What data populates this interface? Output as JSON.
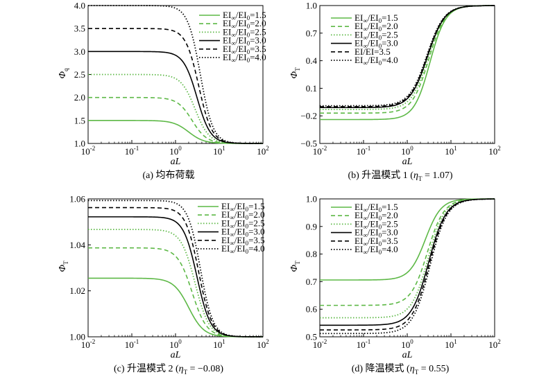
{
  "style": {
    "green": "#5cb845",
    "black": "#000000"
  },
  "legend_entries": [
    {
      "ratio": "1.5",
      "color": "green",
      "dash": "solid"
    },
    {
      "ratio": "2.0",
      "color": "green",
      "dash": "dashed"
    },
    {
      "ratio": "2.5",
      "color": "green",
      "dash": "dotted"
    },
    {
      "ratio": "3.0",
      "color": "black",
      "dash": "solid"
    },
    {
      "ratio": "3.5",
      "color": "black",
      "dash": "dashed"
    },
    {
      "ratio": "4.0",
      "color": "black",
      "dash": "dotted"
    }
  ],
  "chart_data": [
    {
      "id": "a",
      "type": "line",
      "caption": "(a) 均布荷载",
      "caption_eta": "",
      "xlabel": "aL",
      "ylabel_main": "Φ",
      "ylabel_sub": "q",
      "xscale": "log",
      "xlim": [
        0.01,
        100
      ],
      "ylim": [
        1.0,
        4.0
      ],
      "yticks": [
        "1.0",
        "1.5",
        "2.0",
        "2.5",
        "3.0",
        "3.5",
        "4.0"
      ],
      "xticks_exp": [
        "-2",
        "-1",
        "0",
        "1",
        "2"
      ],
      "legend_position": "top-right",
      "legend_sub_text": "∞",
      "series": [
        {
          "legend_id": 0,
          "y_left": 1.5,
          "y_right": 1.0,
          "x_mid": 2.0,
          "steepness": 2.5
        },
        {
          "legend_id": 1,
          "y_left": 2.0,
          "y_right": 1.0,
          "x_mid": 2.4,
          "steepness": 2.6
        },
        {
          "legend_id": 2,
          "y_left": 2.5,
          "y_right": 1.0,
          "x_mid": 2.8,
          "steepness": 2.7
        },
        {
          "legend_id": 3,
          "y_left": 3.0,
          "y_right": 1.0,
          "x_mid": 3.1,
          "steepness": 2.8
        },
        {
          "legend_id": 4,
          "y_left": 3.5,
          "y_right": 1.0,
          "x_mid": 3.4,
          "steepness": 2.9
        },
        {
          "legend_id": 5,
          "y_left": 4.0,
          "y_right": 1.0,
          "x_mid": 3.7,
          "steepness": 3.0
        }
      ]
    },
    {
      "id": "b",
      "type": "line",
      "caption": "(b) 升温模式 1 (",
      "caption_eta": "η",
      "caption_eta_sub": "T",
      "caption_tail": " = 1.07)",
      "xlabel": "aL",
      "ylabel_main": "Φ",
      "ylabel_sub": "T",
      "xscale": "log",
      "xlim": [
        0.01,
        100
      ],
      "ylim": [
        -0.5,
        1.0
      ],
      "yticks": [
        "−0.5",
        "−0.2",
        "0.1",
        "0.4",
        "0.7",
        "1.0"
      ],
      "ytick_values": [
        -0.5,
        -0.2,
        0.1,
        0.4,
        0.7,
        1.0
      ],
      "xticks_exp": [
        "-2",
        "-1",
        "0",
        "1",
        "2"
      ],
      "legend_position": "top-left",
      "legend_sub_text": "∞",
      "legend_ratio_override": {
        "4": "3.5"
      },
      "legend_noscript": [
        4
      ],
      "series": [
        {
          "legend_id": 0,
          "y_left": -0.24,
          "y_right": 1.0,
          "x_mid": 3.3,
          "steepness": 2.4
        },
        {
          "legend_id": 1,
          "y_left": -0.17,
          "y_right": 1.0,
          "x_mid": 3.1,
          "steepness": 2.3
        },
        {
          "legend_id": 2,
          "y_left": -0.13,
          "y_right": 1.0,
          "x_mid": 3.0,
          "steepness": 2.3
        },
        {
          "legend_id": 3,
          "y_left": -0.11,
          "y_right": 1.0,
          "x_mid": 2.9,
          "steepness": 2.2
        },
        {
          "legend_id": 4,
          "y_left": -0.1,
          "y_right": 1.0,
          "x_mid": 2.85,
          "steepness": 2.2
        },
        {
          "legend_id": 5,
          "y_left": -0.09,
          "y_right": 1.0,
          "x_mid": 2.8,
          "steepness": 2.2
        }
      ]
    },
    {
      "id": "c",
      "type": "line",
      "caption": "(c) 升温模式 2 (",
      "caption_eta": "η",
      "caption_eta_sub": "T",
      "caption_tail": " = −0.08)",
      "xlabel": "aL",
      "ylabel_main": "Φ",
      "ylabel_sub": "T",
      "xscale": "log",
      "xlim": [
        0.01,
        100
      ],
      "ylim": [
        1.0,
        1.06
      ],
      "yticks": [
        "1.00",
        "1.02",
        "1.04",
        "1.06"
      ],
      "ytick_values": [
        1.0,
        1.02,
        1.04,
        1.06
      ],
      "xticks_exp": [
        "-2",
        "-1",
        "0",
        "1",
        "2"
      ],
      "legend_position": "top-right",
      "legend_sub_text": "∞",
      "series": [
        {
          "legend_id": 0,
          "y_left": 1.0255,
          "y_right": 1.0,
          "x_mid": 2.0,
          "steepness": 2.5
        },
        {
          "legend_id": 1,
          "y_left": 1.0387,
          "y_right": 1.0,
          "x_mid": 2.4,
          "steepness": 2.6
        },
        {
          "legend_id": 2,
          "y_left": 1.0467,
          "y_right": 1.0,
          "x_mid": 2.8,
          "steepness": 2.7
        },
        {
          "legend_id": 3,
          "y_left": 1.0522,
          "y_right": 1.0,
          "x_mid": 3.1,
          "steepness": 2.8
        },
        {
          "legend_id": 4,
          "y_left": 1.0562,
          "y_right": 1.0,
          "x_mid": 3.4,
          "steepness": 2.9
        },
        {
          "legend_id": 5,
          "y_left": 1.0593,
          "y_right": 1.0,
          "x_mid": 3.7,
          "steepness": 3.0
        }
      ]
    },
    {
      "id": "d",
      "type": "line",
      "caption": "(d) 降温模式 (",
      "caption_eta": "η",
      "caption_eta_sub": "T",
      "caption_tail": " = 0.55)",
      "xlabel": "aL",
      "ylabel_main": "Φ",
      "ylabel_sub": "T",
      "xscale": "log",
      "xlim": [
        0.01,
        100
      ],
      "ylim": [
        0.5,
        1.0
      ],
      "yticks": [
        "0.5",
        "0.6",
        "0.7",
        "0.8",
        "0.9",
        "1.0"
      ],
      "ytick_values": [
        0.5,
        0.6,
        0.7,
        0.8,
        0.9,
        1.0
      ],
      "xticks_exp": [
        "-2",
        "-1",
        "0",
        "1",
        "2"
      ],
      "legend_position": "top-left",
      "legend_sub_text": "∞",
      "series": [
        {
          "legend_id": 0,
          "y_left": 0.706,
          "y_right": 1.0,
          "x_mid": 2.6,
          "steepness": 2.4
        },
        {
          "legend_id": 1,
          "y_left": 0.614,
          "y_right": 1.0,
          "x_mid": 2.9,
          "steepness": 2.3
        },
        {
          "legend_id": 2,
          "y_left": 0.569,
          "y_right": 1.0,
          "x_mid": 3.0,
          "steepness": 2.3
        },
        {
          "legend_id": 3,
          "y_left": 0.542,
          "y_right": 1.0,
          "x_mid": 3.1,
          "steepness": 2.2
        },
        {
          "legend_id": 4,
          "y_left": 0.525,
          "y_right": 1.0,
          "x_mid": 3.2,
          "steepness": 2.2
        },
        {
          "legend_id": 5,
          "y_left": 0.512,
          "y_right": 1.0,
          "x_mid": 3.3,
          "steepness": 2.2
        }
      ]
    }
  ]
}
